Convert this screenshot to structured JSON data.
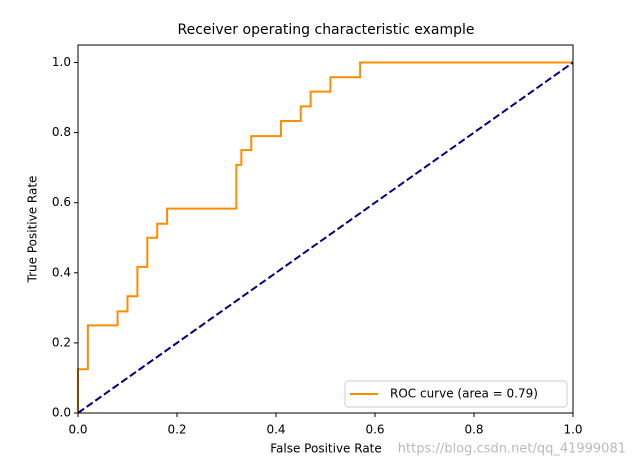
{
  "chart_data": {
    "type": "line",
    "title": "Receiver operating characteristic example",
    "xlabel": "False Positive Rate",
    "ylabel": "True Positive Rate",
    "series": [
      {
        "name": "ROC curve (area = 0.79)",
        "color": "#ff8c00",
        "x": [
          0,
          0,
          0.02,
          0.02,
          0.08,
          0.08,
          0.1,
          0.1,
          0.12,
          0.12,
          0.14,
          0.14,
          0.16,
          0.16,
          0.18,
          0.18,
          0.32,
          0.32,
          0.33,
          0.33,
          0.35,
          0.35,
          0.41,
          0.41,
          0.45,
          0.45,
          0.47,
          0.47,
          0.51,
          0.51,
          0.57,
          0.57,
          1.0
        ],
        "values": [
          0,
          0.125,
          0.125,
          0.25,
          0.25,
          0.29,
          0.29,
          0.333,
          0.333,
          0.417,
          0.417,
          0.5,
          0.5,
          0.54,
          0.54,
          0.583,
          0.583,
          0.708,
          0.708,
          0.75,
          0.75,
          0.79,
          0.79,
          0.833,
          0.833,
          0.875,
          0.875,
          0.917,
          0.917,
          0.958,
          0.958,
          1.0,
          1.0
        ]
      },
      {
        "color": "#000080",
        "dashed": true,
        "x": [
          0,
          1
        ],
        "values": [
          0,
          1
        ]
      }
    ],
    "xlim": [
      0,
      1
    ],
    "ylim": [
      0,
      1.05
    ],
    "xticks": [
      {
        "value": 0,
        "label": "0.0"
      },
      0.2,
      0.4,
      0.6,
      0.8,
      {
        "value": 1,
        "label": "1.0"
      }
    ],
    "yticks": [
      {
        "value": 0,
        "label": "0.0"
      },
      0.2,
      0.4,
      0.6,
      0.8,
      {
        "value": 1,
        "label": "1.0"
      }
    ],
    "grid": false,
    "legend": "lower right"
  },
  "watermark": "https://blog.csdn.net/qq_41999081"
}
